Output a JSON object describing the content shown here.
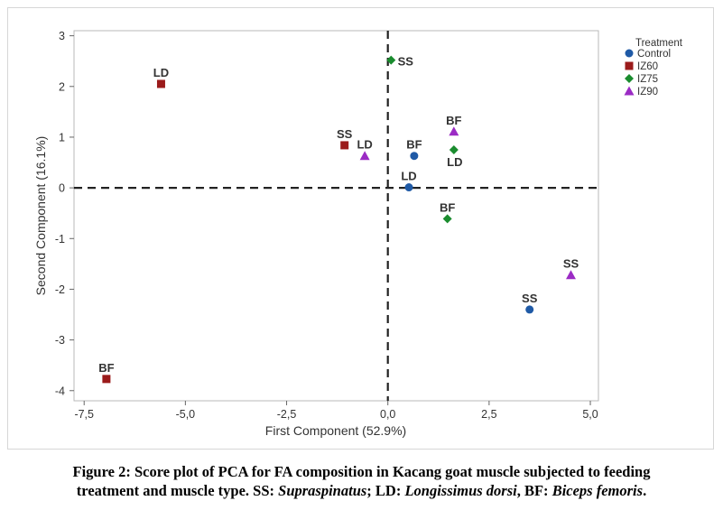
{
  "chart_data": {
    "type": "scatter",
    "title": "",
    "xlabel": "First Component (52.9%)",
    "ylabel": "Second Component (16.1%)",
    "xlim": [
      -7.75,
      5.2
    ],
    "ylim": [
      -4.2,
      3.1
    ],
    "xticks": [
      -7.5,
      -5.0,
      -2.5,
      0.0,
      2.5,
      5.0
    ],
    "xtick_labels": [
      "-7,5",
      "-5,0",
      "-2,5",
      "0,0",
      "2,5",
      "5,0"
    ],
    "yticks": [
      -4,
      -3,
      -2,
      -1,
      0,
      1,
      2,
      3
    ],
    "ytick_labels": [
      "-4",
      "-3",
      "-2",
      "-1",
      "0",
      "1",
      "2",
      "3"
    ],
    "reference_lines": {
      "x": 0,
      "y": 0,
      "style": "dashed"
    },
    "grid": false,
    "legend": {
      "title": "Treatment",
      "placement": "right"
    },
    "series": [
      {
        "name": "Control",
        "marker": "circle",
        "color": "#1f5aa6",
        "points": [
          {
            "label": "SS",
            "x": 3.5,
            "y": -2.4
          },
          {
            "label": "LD",
            "x": 0.52,
            "y": 0.01
          },
          {
            "label": "BF",
            "x": 0.65,
            "y": 0.63
          }
        ]
      },
      {
        "name": "IZ60",
        "marker": "square",
        "color": "#9b1b1b",
        "points": [
          {
            "label": "SS",
            "x": -1.07,
            "y": 0.84
          },
          {
            "label": "LD",
            "x": -5.6,
            "y": 2.05
          },
          {
            "label": "BF",
            "x": -6.95,
            "y": -3.77
          }
        ]
      },
      {
        "name": "IZ75",
        "marker": "diamond",
        "color": "#1a8c2e",
        "points": [
          {
            "label": "SS",
            "x": 0.08,
            "y": 2.52
          },
          {
            "label": "LD",
            "x": 1.63,
            "y": 0.75
          },
          {
            "label": "BF",
            "x": 1.47,
            "y": -0.61
          }
        ]
      },
      {
        "name": "IZ90",
        "marker": "triangle",
        "color": "#9b2bc4",
        "points": [
          {
            "label": "SS",
            "x": 4.52,
            "y": -1.72
          },
          {
            "label": "LD",
            "x": -0.57,
            "y": 0.63
          },
          {
            "label": "BF",
            "x": 1.63,
            "y": 1.11
          }
        ]
      }
    ]
  },
  "caption": {
    "line1": "Figure 2: Score plot of PCA for FA composition in Kacang goat muscle subjected to feeding",
    "line2_prefix": "treatment and muscle type. SS: ",
    "term_ss": "Supraspinatus",
    "sep1": "; LD: ",
    "term_ld": "Longissimus dorsi",
    "sep2": ", BF: ",
    "term_bf": "Biceps femoris",
    "end": "."
  }
}
